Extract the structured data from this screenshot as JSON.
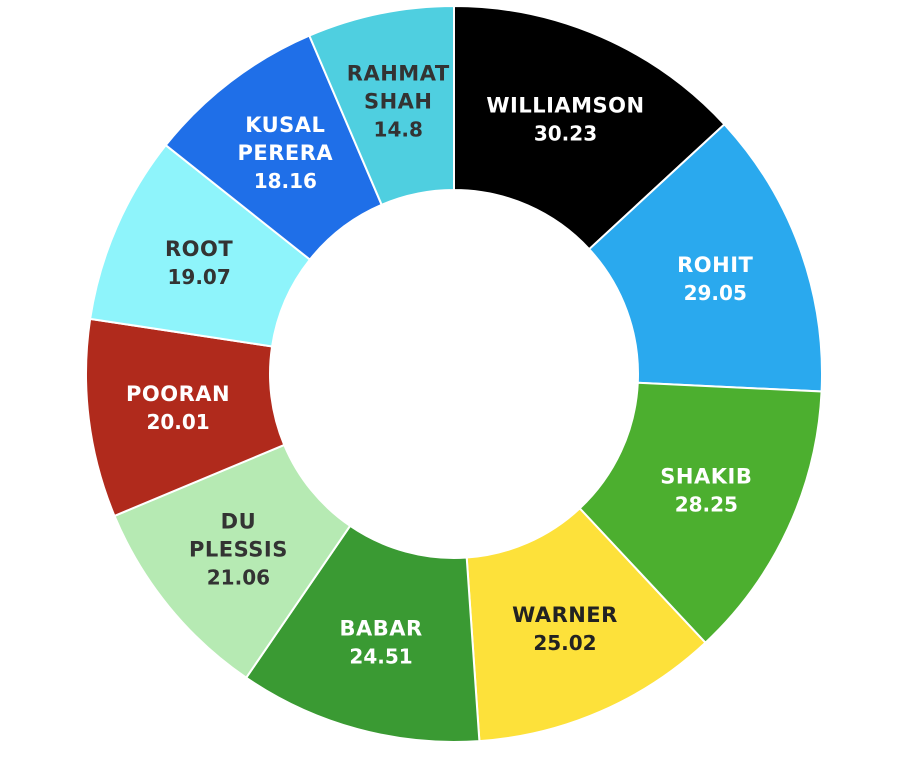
{
  "chart_data": {
    "type": "pie",
    "variant": "donut",
    "series": [
      {
        "name": "WILLIAMSON",
        "lines": [
          "WILLIAMSON"
        ],
        "value": 30.23,
        "color": "#000000",
        "text_color": "#ffffff"
      },
      {
        "name": "ROHIT",
        "lines": [
          "ROHIT"
        ],
        "value": 29.05,
        "color": "#2aa9ee",
        "text_color": "#ffffff"
      },
      {
        "name": "SHAKIB",
        "lines": [
          "SHAKIB"
        ],
        "value": 28.25,
        "color": "#4caf2f",
        "text_color": "#ffffff"
      },
      {
        "name": "WARNER",
        "lines": [
          "WARNER"
        ],
        "value": 25.02,
        "color": "#fde13a",
        "text_color": "#222222"
      },
      {
        "name": "BABAR",
        "lines": [
          "BABAR"
        ],
        "value": 24.51,
        "color": "#3a9a33",
        "text_color": "#ffffff"
      },
      {
        "name": "DU PLESSIS",
        "lines": [
          "DU",
          "PLESSIS"
        ],
        "value": 21.06,
        "color": "#b6eab3",
        "text_color": "#333333"
      },
      {
        "name": "POORAN",
        "lines": [
          "POORAN"
        ],
        "value": 20.01,
        "color": "#b02a1c",
        "text_color": "#ffffff"
      },
      {
        "name": "ROOT",
        "lines": [
          "ROOT"
        ],
        "value": 19.07,
        "color": "#8ef4fb",
        "text_color": "#333333"
      },
      {
        "name": "KUSAL PERERA",
        "lines": [
          "KUSAL",
          "PERERA"
        ],
        "value": 18.16,
        "color": "#1f6fe8",
        "text_color": "#ffffff"
      },
      {
        "name": "RAHMAT SHAH",
        "lines": [
          "RAHMAT",
          "SHAH"
        ],
        "value": 14.8,
        "color": "#4fcfe0",
        "text_color": "#333333"
      }
    ]
  }
}
